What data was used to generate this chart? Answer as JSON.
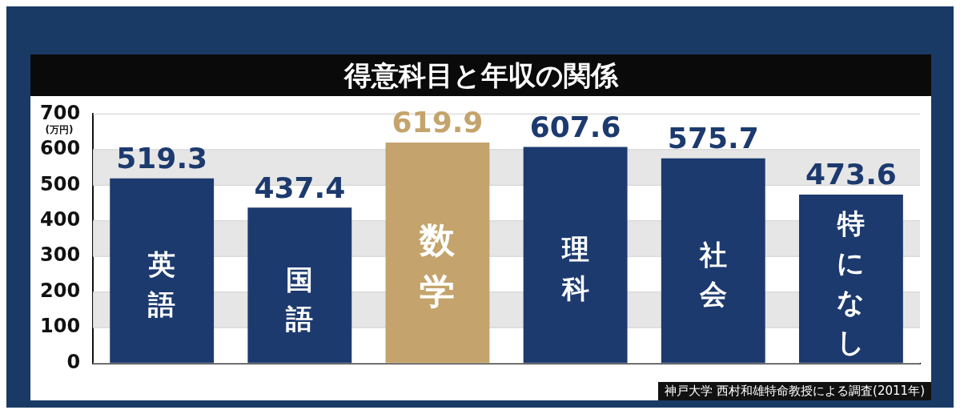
{
  "chart_data": {
    "type": "bar",
    "title": "得意科目と年収の関係",
    "ylabel": "(万円)",
    "categories": [
      "英語",
      "国語",
      "数学",
      "理科",
      "社会",
      "特になし"
    ],
    "values": [
      519.3,
      437.4,
      619.9,
      607.6,
      575.7,
      473.6
    ],
    "colors": [
      "#1c3a6e",
      "#1c3a6e",
      "#c4a46c",
      "#1c3a6e",
      "#1c3a6e",
      "#1c3a6e"
    ],
    "ylim": [
      0,
      700
    ],
    "yticks": [
      0,
      100,
      200,
      300,
      400,
      500,
      600,
      700
    ],
    "grid": "y",
    "data_labels": true,
    "annotations": [
      "神戸大学 西村和雄特命教授による調査(2011年)"
    ]
  }
}
